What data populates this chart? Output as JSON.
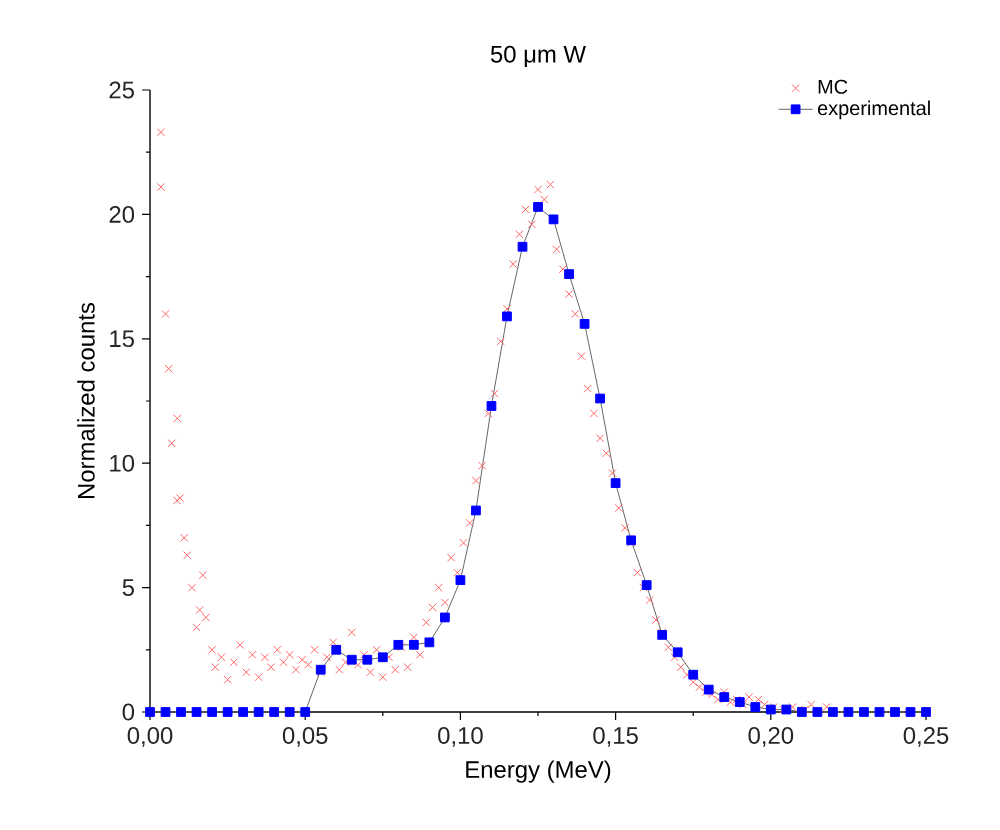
{
  "chart_data": {
    "type": "scatter",
    "title": "50 μm W",
    "xlabel": "Energy (MeV)",
    "ylabel": "Normalized counts",
    "xlim": [
      0,
      0.25
    ],
    "ylim": [
      0,
      25
    ],
    "xticks": [
      {
        "value": 0,
        "label": "0,00"
      },
      {
        "value": 0.05,
        "label": "0,05"
      },
      {
        "value": 0.1,
        "label": "0,10"
      },
      {
        "value": 0.15,
        "label": "0,15"
      },
      {
        "value": 0.2,
        "label": "0,20"
      },
      {
        "value": 0.25,
        "label": "0,25"
      }
    ],
    "yticks": [
      0,
      5,
      10,
      15,
      20,
      25
    ],
    "grid": false,
    "legend": "top right",
    "series": [
      {
        "name": "MC",
        "marker": "cross",
        "color": "#ff6666",
        "x": [
          0.0035,
          0.0035,
          0.005,
          0.006,
          0.007,
          0.0088,
          0.0087,
          0.0097,
          0.011,
          0.012,
          0.0135,
          0.017,
          0.015,
          0.016,
          0.018,
          0.02,
          0.021,
          0.023,
          0.025,
          0.027,
          0.029,
          0.031,
          0.033,
          0.035,
          0.037,
          0.039,
          0.041,
          0.043,
          0.045,
          0.047,
          0.049,
          0.051,
          0.053,
          0.055,
          0.057,
          0.059,
          0.061,
          0.063,
          0.065,
          0.067,
          0.069,
          0.071,
          0.073,
          0.075,
          0.077,
          0.079,
          0.081,
          0.083,
          0.085,
          0.087,
          0.089,
          0.091,
          0.093,
          0.095,
          0.097,
          0.099,
          0.101,
          0.103,
          0.105,
          0.107,
          0.109,
          0.111,
          0.113,
          0.115,
          0.117,
          0.119,
          0.121,
          0.123,
          0.125,
          0.127,
          0.129,
          0.131,
          0.133,
          0.135,
          0.137,
          0.139,
          0.141,
          0.143,
          0.145,
          0.147,
          0.149,
          0.151,
          0.153,
          0.155,
          0.157,
          0.159,
          0.161,
          0.163,
          0.165,
          0.167,
          0.169,
          0.171,
          0.173,
          0.175,
          0.177,
          0.179,
          0.181,
          0.183,
          0.185,
          0.187,
          0.189,
          0.191,
          0.193,
          0.196,
          0.198,
          0.201,
          0.204,
          0.207,
          0.211,
          0.213,
          0.218
        ],
        "values": [
          23.3,
          21.1,
          16.0,
          13.8,
          10.8,
          11.8,
          8.5,
          8.6,
          7.0,
          6.3,
          5.0,
          5.5,
          3.4,
          4.1,
          3.8,
          2.5,
          1.8,
          2.2,
          1.3,
          2.0,
          2.7,
          1.6,
          2.3,
          1.4,
          2.2,
          1.8,
          2.5,
          2.0,
          2.3,
          1.7,
          2.1,
          1.9,
          2.5,
          1.6,
          2.2,
          2.8,
          1.7,
          2.0,
          3.2,
          1.9,
          2.3,
          1.6,
          2.5,
          1.4,
          2.2,
          1.7,
          2.6,
          1.8,
          3.0,
          2.3,
          3.6,
          4.2,
          5.0,
          4.4,
          6.2,
          5.6,
          6.8,
          7.6,
          9.3,
          9.9,
          12.0,
          12.8,
          14.9,
          16.2,
          18.0,
          19.2,
          20.2,
          19.6,
          21.0,
          20.6,
          21.2,
          18.6,
          17.8,
          16.8,
          16.0,
          14.3,
          13.0,
          12.0,
          11.0,
          10.4,
          9.6,
          8.2,
          7.4,
          6.8,
          5.6,
          5.0,
          4.5,
          3.7,
          3.2,
          2.6,
          2.2,
          1.8,
          1.5,
          1.2,
          1.0,
          0.8,
          0.7,
          0.5,
          0.8,
          0.4,
          0.5,
          0.3,
          0.6,
          0.5,
          0.3,
          0.2,
          0.1,
          0.2,
          0.1,
          0.3,
          0.2
        ]
      },
      {
        "name": "experimental",
        "type": "line",
        "marker": "square",
        "line_style": "solid",
        "color": "#0000ff",
        "x": [
          0,
          0.005,
          0.01,
          0.015,
          0.02,
          0.025,
          0.03,
          0.035,
          0.04,
          0.045,
          0.05,
          0.055,
          0.06,
          0.065,
          0.07,
          0.075,
          0.08,
          0.085,
          0.09,
          0.095,
          0.1,
          0.105,
          0.11,
          0.115,
          0.12,
          0.125,
          0.13,
          0.135,
          0.14,
          0.145,
          0.15,
          0.155,
          0.16,
          0.165,
          0.17,
          0.175,
          0.18,
          0.185,
          0.19,
          0.195,
          0.2,
          0.205,
          0.21,
          0.215,
          0.22,
          0.225,
          0.23,
          0.235,
          0.24,
          0.245,
          0.25
        ],
        "values": [
          0,
          0,
          0,
          0,
          0,
          0,
          0,
          0,
          0,
          0,
          0,
          1.7,
          2.5,
          2.1,
          2.1,
          2.2,
          2.7,
          2.7,
          2.8,
          3.8,
          5.3,
          8.1,
          12.3,
          15.9,
          18.7,
          20.3,
          19.8,
          17.6,
          15.6,
          12.6,
          9.2,
          6.9,
          5.1,
          3.1,
          2.4,
          1.5,
          0.9,
          0.6,
          0.4,
          0.2,
          0.1,
          0.1,
          0,
          0,
          0,
          0,
          0,
          0,
          0,
          0,
          0
        ]
      }
    ]
  }
}
